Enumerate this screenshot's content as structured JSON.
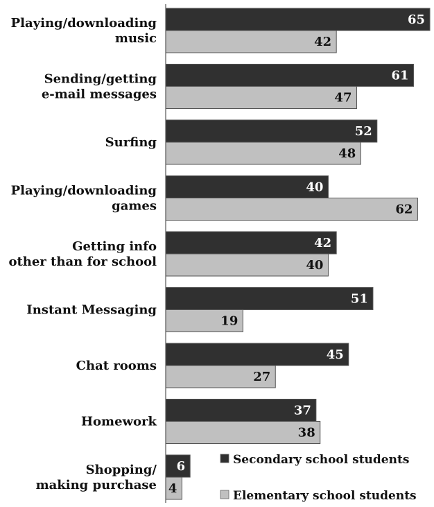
{
  "chart_data": {
    "type": "bar",
    "orientation": "horizontal",
    "categories": [
      [
        "Playing/downloading",
        "music"
      ],
      [
        "Sending/getting",
        "e-mail messages"
      ],
      [
        "Surfing"
      ],
      [
        "Playing/downloading",
        "games"
      ],
      [
        "Getting info",
        "other than for school"
      ],
      [
        "Instant Messaging"
      ],
      [
        "Chat rooms"
      ],
      [
        "Homework"
      ],
      [
        "Shopping/",
        "making purchase"
      ]
    ],
    "series": [
      {
        "name": "Secondary school students",
        "values": [
          65,
          61,
          52,
          40,
          42,
          51,
          45,
          37,
          6
        ],
        "color": "#303030",
        "label_color": "#ffffff"
      },
      {
        "name": "Elementary school students",
        "values": [
          42,
          47,
          48,
          62,
          40,
          19,
          27,
          38,
          4
        ],
        "color": "#c0c0c0",
        "label_color": "#111111"
      }
    ],
    "xlim": [
      0,
      65
    ],
    "grid": false,
    "legend_position": "bottom-right"
  }
}
